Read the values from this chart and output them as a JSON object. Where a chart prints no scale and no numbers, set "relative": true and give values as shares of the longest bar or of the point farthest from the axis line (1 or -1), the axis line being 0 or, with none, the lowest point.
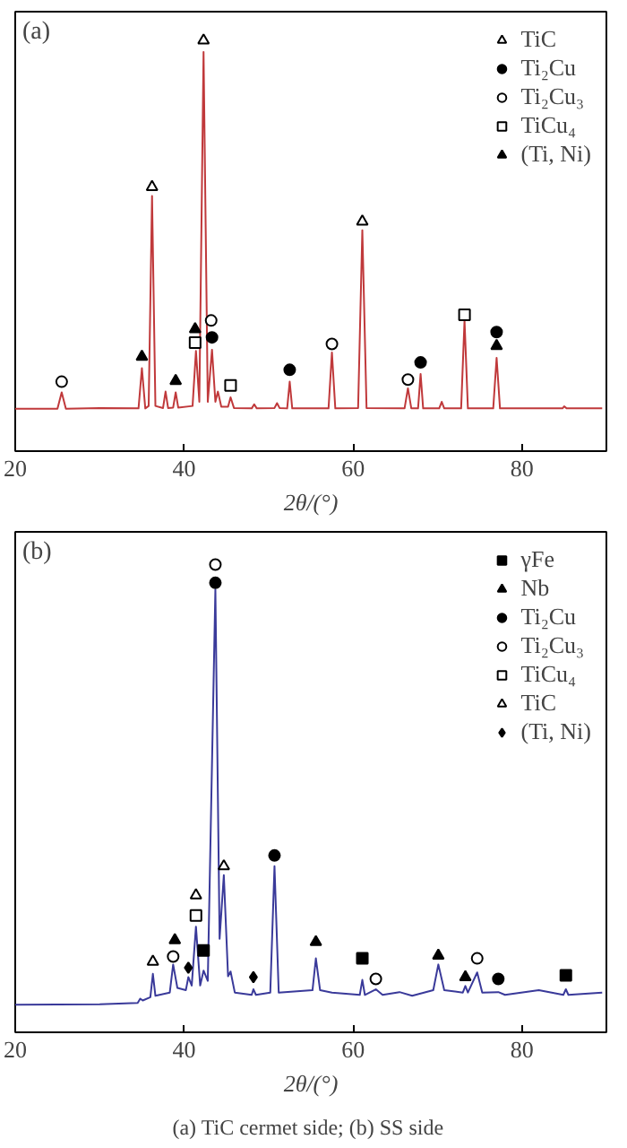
{
  "chart_data": [
    {
      "type": "line",
      "title": "(a)",
      "xlabel": "2θ/(°)",
      "relative": true,
      "xlim": [
        20,
        90
      ],
      "xticks": [
        20,
        40,
        60,
        80
      ],
      "grid": false,
      "legend": "top right",
      "series": [
        {
          "color": "#c0393b",
          "x": [
            20,
            25,
            25.5,
            26,
            30,
            34.6,
            35.0,
            35.4,
            35.8,
            36.2,
            36.6,
            37.5,
            37.8,
            38.1,
            38.7,
            39.0,
            39.3,
            41.0,
            41.4,
            41.8,
            42.3,
            42.8,
            43.3,
            43.7,
            44.0,
            44.4,
            45.2,
            45.5,
            45.9,
            48.0,
            48.3,
            48.6,
            50.7,
            51.0,
            51.3,
            52.2,
            52.5,
            52.8,
            57.1,
            57.5,
            57.9,
            60.6,
            61.1,
            61.6,
            66.1,
            66.5,
            66.9,
            67.7,
            68.0,
            68.3,
            70.2,
            70.5,
            70.8,
            72.8,
            73.2,
            73.6,
            76.6,
            77.0,
            77.4,
            84.8,
            85.0,
            85.3,
            89.5
          ],
          "values": [
            0.103,
            0.103,
            0.143,
            0.103,
            0.105,
            0.104,
            0.202,
            0.104,
            0.11,
            0.621,
            0.11,
            0.105,
            0.145,
            0.105,
            0.106,
            0.143,
            0.106,
            0.11,
            0.244,
            0.12,
            0.972,
            0.12,
            0.247,
            0.12,
            0.145,
            0.108,
            0.108,
            0.131,
            0.105,
            0.104,
            0.114,
            0.104,
            0.105,
            0.117,
            0.105,
            0.104,
            0.169,
            0.104,
            0.104,
            0.24,
            0.104,
            0.105,
            0.538,
            0.105,
            0.104,
            0.153,
            0.104,
            0.104,
            0.188,
            0.104,
            0.104,
            0.12,
            0.104,
            0.104,
            0.318,
            0.104,
            0.104,
            0.227,
            0.104,
            0.104,
            0.109,
            0.104,
            0.104
          ]
        },
        {
          "type": "scatter",
          "name": "TiC",
          "marker": "triangle",
          "color": "#ffffff",
          "x": [
            36.2,
            42.3,
            61.1
          ],
          "values": [
            0.643,
            1.0,
            0.559
          ]
        },
        {
          "type": "scatter",
          "name": "Ti₂Cu",
          "marker": "circle",
          "color": "#000000",
          "x": [
            43.3,
            52.5,
            68.0,
            77.0
          ],
          "values": [
            0.277,
            0.198,
            0.216,
            0.29
          ]
        },
        {
          "type": "scatter",
          "name": "Ti₂Cu₃",
          "marker": "circle",
          "color": "#ffffff",
          "x": [
            25.5,
            43.2,
            57.5,
            66.5
          ],
          "values": [
            0.169,
            0.318,
            0.261,
            0.174
          ]
        },
        {
          "type": "scatter",
          "name": "TiCu₄",
          "marker": "square",
          "color": "#ffffff",
          "x": [
            41.3,
            45.5,
            73.2
          ],
          "values": [
            0.264,
            0.16,
            0.332
          ]
        },
        {
          "type": "scatter",
          "name": "(Ti, Ni)",
          "marker": "triangle",
          "color": "#000000",
          "x": [
            35.0,
            39.0,
            41.3,
            77.0
          ],
          "values": [
            0.23,
            0.171,
            0.297,
            0.256
          ]
        }
      ]
    },
    {
      "type": "line",
      "title": "(b)",
      "xlabel": "2θ/(°)",
      "relative": true,
      "xlim": [
        20,
        90
      ],
      "xticks": [
        20,
        40,
        60,
        80
      ],
      "grid": false,
      "legend": "top right",
      "annotations": [
        "(a)  TiC cermet side; (b) SS side"
      ],
      "series": [
        {
          "color": "#3a3a9a",
          "x": [
            20,
            30,
            34.5,
            34.8,
            35.1,
            36.0,
            36.3,
            36.6,
            38.3,
            38.7,
            39.2,
            40.2,
            40.5,
            40.9,
            41.4,
            41.9,
            42.3,
            42.8,
            43.7,
            44.2,
            44.7,
            45.2,
            45.5,
            46.0,
            48.0,
            48.2,
            48.5,
            50.2,
            50.7,
            51.2,
            55.2,
            55.6,
            56.1,
            57.5,
            60.8,
            61.1,
            61.4,
            62.7,
            63.5,
            65.5,
            67,
            69.5,
            70.1,
            70.8,
            73.0,
            73.3,
            73.6,
            74.7,
            75.3,
            77.2,
            78,
            82,
            84.9,
            85.2,
            85.5,
            89.5
          ],
          "values": [
            0.059,
            0.06,
            0.063,
            0.072,
            0.068,
            0.075,
            0.125,
            0.078,
            0.085,
            0.145,
            0.095,
            0.09,
            0.118,
            0.1,
            0.226,
            0.1,
            0.132,
            0.11,
            0.947,
            0.2,
            0.336,
            0.12,
            0.13,
            0.085,
            0.08,
            0.092,
            0.08,
            0.085,
            0.355,
            0.085,
            0.09,
            0.158,
            0.09,
            0.085,
            0.08,
            0.112,
            0.08,
            0.092,
            0.08,
            0.086,
            0.078,
            0.09,
            0.145,
            0.09,
            0.085,
            0.099,
            0.085,
            0.128,
            0.085,
            0.086,
            0.08,
            0.09,
            0.08,
            0.092,
            0.08,
            0.085
          ]
        },
        {
          "type": "scatter",
          "name": "γFe",
          "marker": "square",
          "color": "#000000",
          "x": [
            42.3,
            61.1,
            85.2
          ],
          "values": [
            0.175,
            0.158,
            0.122
          ]
        },
        {
          "type": "scatter",
          "name": "Nb",
          "marker": "triangle",
          "color": "#000000",
          "x": [
            38.9,
            55.6,
            70.1,
            73.3
          ],
          "values": [
            0.197,
            0.193,
            0.164,
            0.118
          ]
        },
        {
          "type": "scatter",
          "name": "Ti₂Cu",
          "marker": "circle",
          "color": "#000000",
          "x": [
            43.7,
            50.7,
            77.2
          ],
          "values": [
            0.961,
            0.378,
            0.114
          ]
        },
        {
          "type": "scatter",
          "name": "Ti₂Cu₃",
          "marker": "circle",
          "color": "#ffffff",
          "x": [
            38.7,
            43.7,
            62.7,
            74.7
          ],
          "values": [
            0.162,
            1.0,
            0.114,
            0.158
          ]
        },
        {
          "type": "scatter",
          "name": "TiCu₄",
          "marker": "square",
          "color": "#ffffff",
          "x": [
            41.4
          ],
          "values": [
            0.25
          ]
        },
        {
          "type": "scatter",
          "name": "TiC",
          "marker": "triangle",
          "color": "#ffffff",
          "x": [
            36.3,
            41.4,
            44.7
          ],
          "values": [
            0.151,
            0.293,
            0.355
          ]
        },
        {
          "type": "scatter",
          "name": "(Ti, Ni)",
          "marker": "diamond",
          "color": "#000000",
          "x": [
            40.5,
            48.2
          ],
          "values": [
            0.138,
            0.118
          ]
        }
      ]
    }
  ]
}
